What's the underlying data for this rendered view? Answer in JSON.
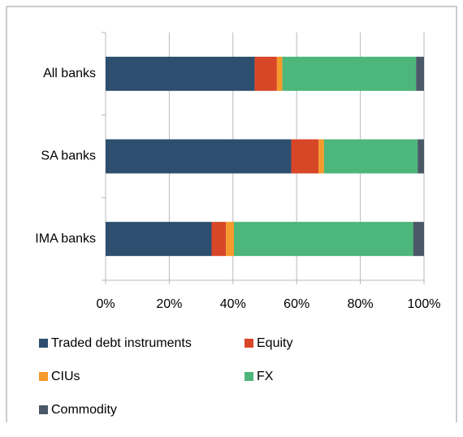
{
  "chart_data": {
    "type": "stacked-bar-horizontal",
    "categories": [
      "All banks",
      "SA banks",
      "IMA banks"
    ],
    "series": [
      {
        "name": "Traded debt instruments",
        "color": "#2d4e6e",
        "values": [
          46.8,
          58.3,
          33.3
        ]
      },
      {
        "name": "Equity",
        "color": "#d84628",
        "values": [
          7,
          8.6,
          4.5
        ]
      },
      {
        "name": "CIUs",
        "color": "#f59a2c",
        "values": [
          1.7,
          1.7,
          2.5
        ]
      },
      {
        "name": "FX",
        "color": "#4db67a",
        "values": [
          42,
          29.4,
          56.3
        ]
      },
      {
        "name": "Commodity",
        "color": "#4a5868",
        "values": [
          2.5,
          2,
          3.4
        ]
      }
    ],
    "xlim": [
      0,
      100
    ],
    "xticks": [
      {
        "value": 0,
        "label": "0%"
      },
      {
        "value": 20,
        "label": "20%"
      },
      {
        "value": 40,
        "label": "40%"
      },
      {
        "value": 60,
        "label": "60%"
      },
      {
        "value": 80,
        "label": "80%"
      },
      {
        "value": 100,
        "label": "100%"
      }
    ],
    "grid": true
  }
}
